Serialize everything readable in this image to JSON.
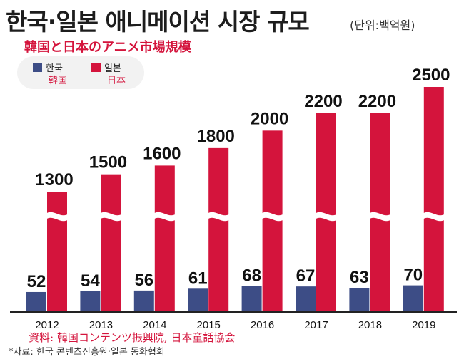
{
  "header": {
    "title": "한국·일본 애니메이션 시장 규모",
    "unit": "(단위:백억원)",
    "subtitle_jp": "韓国と日本のアニメ市場規模"
  },
  "legend": {
    "korea": {
      "label_ko": "한국",
      "label_jp": "韓国"
    },
    "japan": {
      "label_ko": "일본",
      "label_jp": "日本"
    }
  },
  "colors": {
    "korea": "#3d4d86",
    "japan": "#d4143c",
    "break_stroke": "#ffffff",
    "axis": "#222222"
  },
  "chart_data": {
    "type": "bar",
    "title": "한국·일본 애니메이션 시장 규모",
    "unit": "(단위:백억원)",
    "categories": [
      "2012",
      "2013",
      "2014",
      "2015",
      "2016",
      "2017",
      "2018",
      "2019"
    ],
    "series": [
      {
        "name": "한국",
        "values": [
          52,
          54,
          56,
          61,
          68,
          67,
          63,
          70
        ]
      },
      {
        "name": "일본",
        "values": [
          1300,
          1500,
          1600,
          1800,
          2000,
          2200,
          2200,
          2500
        ]
      }
    ],
    "axis_break": true,
    "grid": false,
    "legend_position": "top-left"
  },
  "footer": {
    "source_jp": "資料: 韓国コンテンツ振興院, 日本童話協会",
    "source_ko": "*자료: 한국 콘텐츠진흥원·일본 동화협회"
  }
}
